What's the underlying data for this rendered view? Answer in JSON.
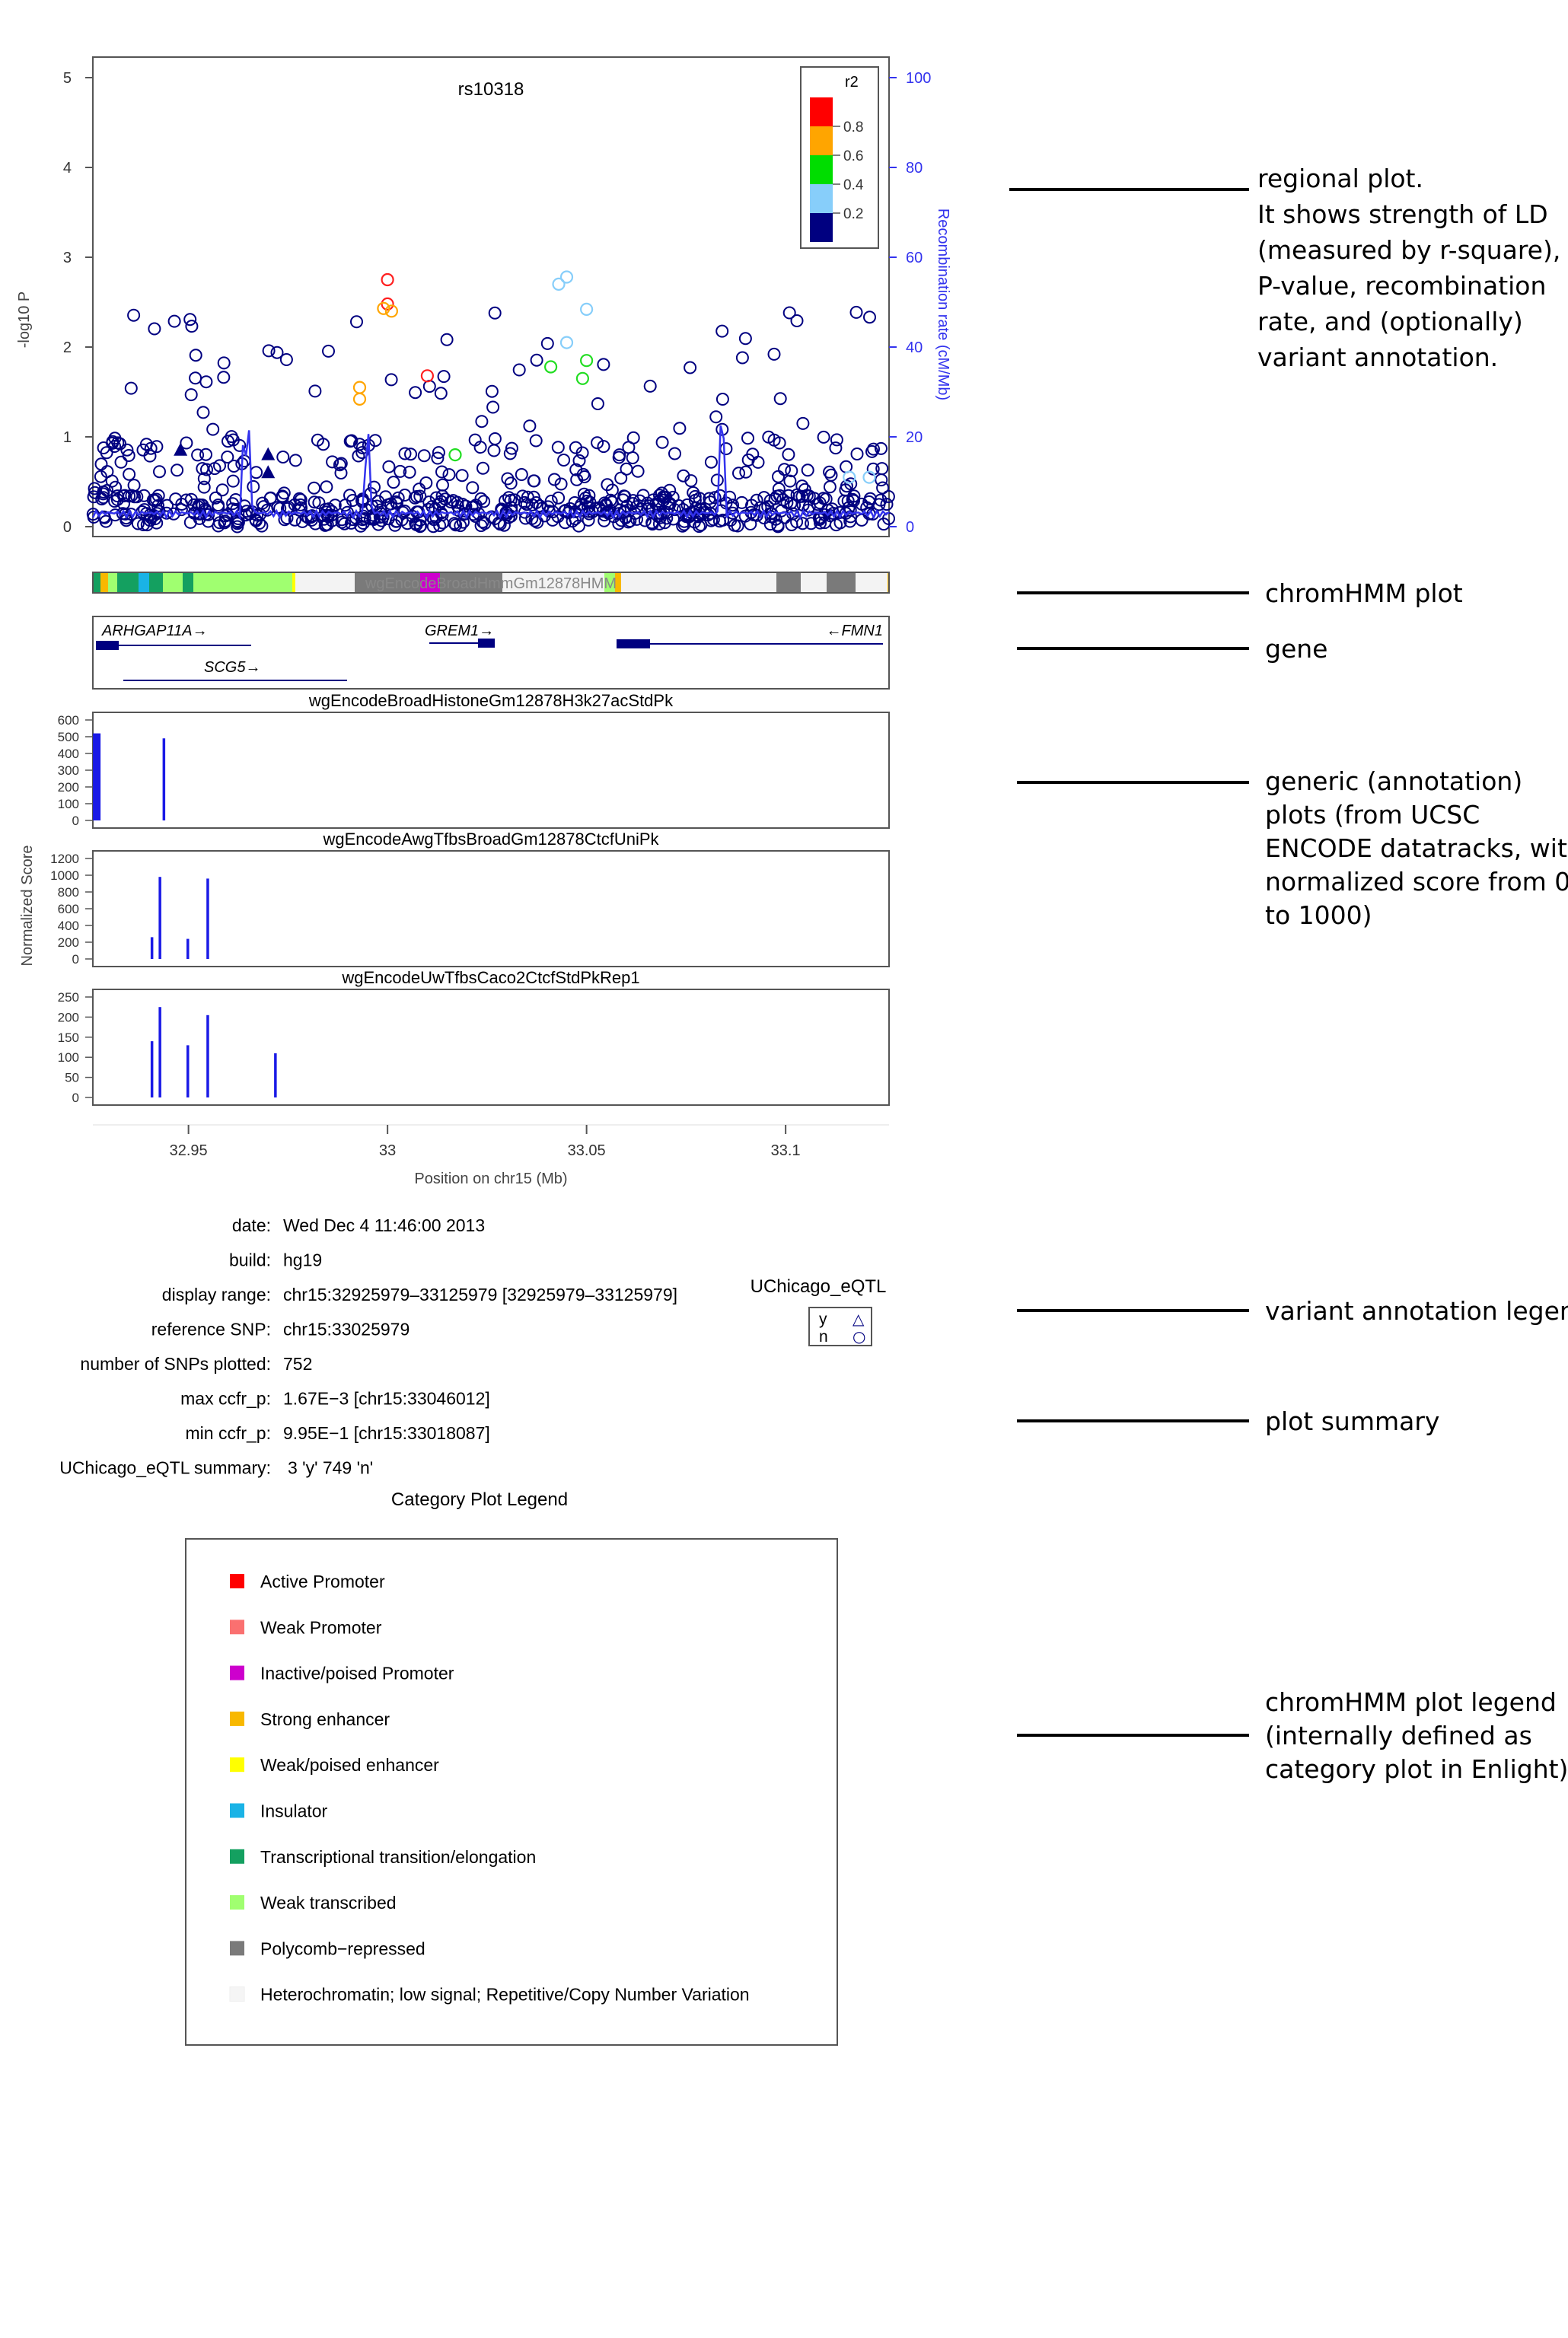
{
  "regional": {
    "title": "rs10318",
    "ylabel": "-log10 P",
    "y2label": "Recombination rate (cM/Mb)",
    "yticks": [
      "0",
      "1",
      "2",
      "3",
      "4",
      "5"
    ],
    "y2ticks": [
      "0",
      "20",
      "40",
      "60",
      "80",
      "100"
    ],
    "legend_title": "r2",
    "legend_labels": [
      "0.8",
      "0.6",
      "0.4",
      "0.2"
    ],
    "legend_colors": [
      "#ff0000",
      "#ffa500",
      "#00dd00",
      "#87cefa",
      "#000080"
    ]
  },
  "chromhmm": {
    "track_label": "wgEncodeBroadHmmGm12878HMM"
  },
  "genes": [
    {
      "label": "ARHGAP11A→"
    },
    {
      "label": "GREM1→"
    },
    {
      "label": "←FMN1"
    },
    {
      "label": "SCG5→"
    }
  ],
  "tracks": [
    {
      "title": "wgEncodeBroadHistoneGm12878H3k27acStdPk",
      "yticks": [
        "0",
        "100",
        "200",
        "300",
        "400",
        "500",
        "600"
      ]
    },
    {
      "title": "wgEncodeAwgTfbsBroadGm12878CtcfUniPk",
      "yticks": [
        "0",
        "200",
        "400",
        "600",
        "800",
        "1000",
        "1200"
      ]
    },
    {
      "title": "wgEncodeUwTfbsCaco2CtcfStdPkRep1",
      "yticks": [
        "0",
        "50",
        "100",
        "150",
        "200",
        "250"
      ]
    }
  ],
  "normalized_label": "Normalized Score",
  "xaxis": {
    "ticks": [
      "32.95",
      "33",
      "33.05",
      "33.1"
    ],
    "label": "Position on chr15 (Mb)"
  },
  "summary": [
    {
      "key": "date:",
      "value": "Wed Dec  4 11:46:00 2013"
    },
    {
      "key": "build:",
      "value": "hg19"
    },
    {
      "key": "display range:",
      "value": "chr15:32925979–33125979 [32925979–33125979]"
    },
    {
      "key": "reference SNP:",
      "value": "chr15:33025979"
    },
    {
      "key": "number of SNPs plotted:",
      "value": "752"
    },
    {
      "key": "max ccfr_p:",
      "value": "1.67E−3 [chr15:33046012]"
    },
    {
      "key": "min ccfr_p:",
      "value": "9.95E−1 [chr15:33018087]"
    },
    {
      "key": "UChicago_eQTL summary:",
      "value": "3 'y' 749 'n'"
    }
  ],
  "eqtl_legend": {
    "title": "UChicago_eQTL",
    "rows": [
      {
        "key": "y",
        "symbol": "△"
      },
      {
        "key": "n",
        "symbol": "○"
      }
    ]
  },
  "category_legend": {
    "title": "Category Plot Legend",
    "items": [
      {
        "label": "Active Promoter",
        "color": "#ff0000"
      },
      {
        "label": "Weak Promoter",
        "color": "#fa7070"
      },
      {
        "label": "Inactive/poised Promoter",
        "color": "#cd00cd"
      },
      {
        "label": "Strong enhancer",
        "color": "#f8b800"
      },
      {
        "label": "Weak/poised enhancer",
        "color": "#ffff00"
      },
      {
        "label": "Insulator",
        "color": "#1ab3e6"
      },
      {
        "label": "Transcriptional transition/elongation",
        "color": "#14a060"
      },
      {
        "label": "Weak transcribed",
        "color": "#a0ff70"
      },
      {
        "label": "Polycomb−repressed",
        "color": "#7a7a7a"
      },
      {
        "label": "Heterochromatin; low signal; Repetitive/Copy Number Variation",
        "color": "#f5f5f5"
      }
    ]
  },
  "annotations": [
    {
      "lines": [
        "regional plot.",
        "It shows strength of LD",
        "(measured by r-square),",
        "P-value, recombination",
        "rate, and (optionally)",
        "variant annotation."
      ]
    },
    {
      "lines": [
        "chromHMM plot"
      ]
    },
    {
      "lines": [
        "gene"
      ]
    },
    {
      "lines": [
        "generic (annotation)",
        "plots (from UCSC",
        "ENCODE datatracks, with",
        "normalized score from 0",
        "to 1000)"
      ]
    },
    {
      "lines": [
        "variant annotation legend"
      ]
    },
    {
      "lines": [
        "plot summary"
      ]
    },
    {
      "lines": [
        "chromHMM plot legend",
        "(internally defined as",
        "category plot in Enlight)"
      ]
    }
  ],
  "chart_data": [
    {
      "type": "scatter",
      "title": "rs10318",
      "ylabel": "-log10 P",
      "y2label": "Recombination rate (cM/Mb)",
      "xlim": [
        32.925979,
        33.125979
      ],
      "ylim": [
        0,
        5
      ],
      "y2lim": [
        0,
        100
      ],
      "notes_layers": "points colored by r2; recombination rate as blue line",
      "highlight_points": [
        {
          "x": 33.0,
          "y": 2.75,
          "r2": "0.8-1.0"
        },
        {
          "x": 33.0,
          "y": 2.48,
          "r2": "0.8-1.0"
        },
        {
          "x": 33.01,
          "y": 1.68,
          "r2": "0.8-1.0"
        },
        {
          "x": 32.999,
          "y": 2.43,
          "r2": "0.6-0.8"
        },
        {
          "x": 33.001,
          "y": 2.4,
          "r2": "0.6-0.8"
        },
        {
          "x": 32.993,
          "y": 1.55,
          "r2": "0.6-0.8"
        },
        {
          "x": 32.993,
          "y": 1.42,
          "r2": "0.6-0.8"
        },
        {
          "x": 33.041,
          "y": 1.78,
          "r2": "0.4-0.6"
        },
        {
          "x": 33.05,
          "y": 1.85,
          "r2": "0.4-0.6"
        },
        {
          "x": 33.049,
          "y": 1.65,
          "r2": "0.4-0.6"
        },
        {
          "x": 33.017,
          "y": 0.8,
          "r2": "0.4-0.6"
        },
        {
          "x": 33.045,
          "y": 2.78,
          "r2": "0.2-0.4"
        },
        {
          "x": 33.043,
          "y": 2.7,
          "r2": "0.2-0.4"
        },
        {
          "x": 33.05,
          "y": 2.42,
          "r2": "0.2-0.4"
        },
        {
          "x": 33.045,
          "y": 2.05,
          "r2": "0.2-0.4"
        },
        {
          "x": 33.116,
          "y": 0.55,
          "r2": "0.2-0.4"
        },
        {
          "x": 33.121,
          "y": 0.55,
          "r2": "0.2-0.4"
        }
      ],
      "eqtl_y_points": [
        {
          "x": 32.948,
          "y": 0.85
        },
        {
          "x": 32.97,
          "y": 0.8
        },
        {
          "x": 32.97,
          "y": 0.6
        }
      ],
      "recombination_peaks": [
        {
          "x": 32.964,
          "y2": 25
        },
        {
          "x": 32.965,
          "y2": 26
        },
        {
          "x": 32.995,
          "y2": 25
        },
        {
          "x": 33.084,
          "y2": 31
        }
      ]
    },
    {
      "type": "bar",
      "title": "wgEncodeBroadHistoneGm12878H3k27acStdPk",
      "ylabel": "Normalized Score",
      "ylim": [
        0,
        600
      ],
      "x": [
        32.926,
        32.9435
      ],
      "values": [
        520,
        490
      ]
    },
    {
      "type": "bar",
      "title": "wgEncodeAwgTfbsBroadGm12878CtcfUniPk",
      "ylabel": "Normalized Score",
      "ylim": [
        0,
        1200
      ],
      "x": [
        32.9405,
        32.9425,
        32.9495,
        32.9545
      ],
      "values": [
        260,
        980,
        240,
        960
      ]
    },
    {
      "type": "bar",
      "title": "wgEncodeUwTfbsCaco2CtcfStdPkRep1",
      "ylabel": "Normalized Score",
      "ylim": [
        0,
        250
      ],
      "x": [
        32.9405,
        32.9425,
        32.9495,
        32.9545,
        32.9715
      ],
      "values": [
        140,
        225,
        130,
        205,
        110
      ]
    }
  ]
}
